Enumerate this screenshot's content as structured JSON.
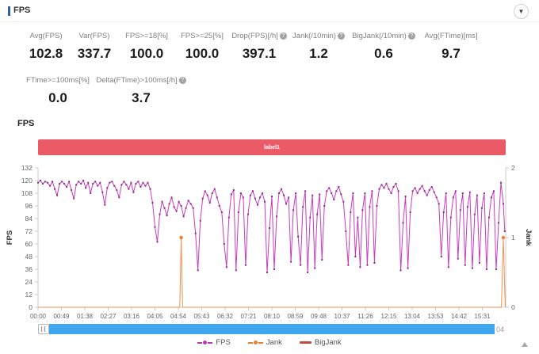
{
  "header": {
    "title": "FPS",
    "dropdown_icon": "▼"
  },
  "stats": {
    "row1": [
      {
        "label": "Avg(FPS)",
        "value": "102.8",
        "help": false
      },
      {
        "label": "Var(FPS)",
        "value": "337.7",
        "help": false
      },
      {
        "label": "FPS>=18[%]",
        "value": "100.0",
        "help": false
      },
      {
        "label": "FPS>=25[%]",
        "value": "100.0",
        "help": false
      },
      {
        "label": "Drop(FPS)[/h]",
        "value": "397.1",
        "help": true
      },
      {
        "label": "Jank(/10min)",
        "value": "1.2",
        "help": true
      },
      {
        "label": "BigJank(/10min)",
        "value": "0.6",
        "help": true
      },
      {
        "label": "Avg(FTime)[ms]",
        "value": "9.7",
        "help": false
      }
    ],
    "row2": [
      {
        "label": "FTime>=100ms[%]",
        "value": "0.0",
        "help": false
      },
      {
        "label": "Delta(FTime)>100ms[/h]",
        "value": "3.7",
        "help": true
      }
    ]
  },
  "chart_section": {
    "title": "FPS",
    "banner": {
      "text": "label1",
      "color": "#eb5a67"
    }
  },
  "chart_data": {
    "type": "line",
    "title": "FPS",
    "x_axis": {
      "tick_labels": [
        "00:00",
        "00:49",
        "01:38",
        "02:27",
        "03:16",
        "04:05",
        "04:54",
        "05:43",
        "06:32",
        "07:21",
        "08:10",
        "08:59",
        "09:48",
        "10:37",
        "11:26",
        "12:15",
        "13:04",
        "13:53",
        "14:42",
        "15:31"
      ],
      "tick_interval_seconds": 49,
      "range_seconds": [
        0,
        980
      ]
    },
    "y_left": {
      "label": "FPS",
      "ticks": [
        0,
        12,
        24,
        36,
        48,
        60,
        72,
        84,
        96,
        108,
        120,
        132
      ],
      "range": [
        0,
        132
      ]
    },
    "y_right": {
      "label": "Jank",
      "ticks": [
        0,
        1,
        2
      ],
      "range": [
        0,
        2
      ]
    },
    "grid": false,
    "legend_position": "bottom",
    "series": [
      {
        "name": "FPS",
        "axis": "left",
        "color": "#c83cbe",
        "marker_color": "#8e2d88",
        "points": [
          [
            0,
            118
          ],
          [
            5,
            120
          ],
          [
            10,
            117
          ],
          [
            15,
            119
          ],
          [
            20,
            118
          ],
          [
            25,
            115
          ],
          [
            30,
            119
          ],
          [
            35,
            112
          ],
          [
            40,
            106
          ],
          [
            45,
            117
          ],
          [
            50,
            119
          ],
          [
            55,
            117
          ],
          [
            60,
            114
          ],
          [
            65,
            119
          ],
          [
            70,
            111
          ],
          [
            75,
            103
          ],
          [
            80,
            116
          ],
          [
            85,
            119
          ],
          [
            90,
            117
          ],
          [
            95,
            120
          ],
          [
            100,
            113
          ],
          [
            105,
            118
          ],
          [
            110,
            108
          ],
          [
            115,
            117
          ],
          [
            120,
            119
          ],
          [
            125,
            115
          ],
          [
            130,
            118
          ],
          [
            135,
            109
          ],
          [
            140,
            97
          ],
          [
            145,
            113
          ],
          [
            150,
            118
          ],
          [
            155,
            119
          ],
          [
            160,
            115
          ],
          [
            165,
            111
          ],
          [
            170,
            104
          ],
          [
            175,
            116
          ],
          [
            180,
            119
          ],
          [
            185,
            116
          ],
          [
            190,
            112
          ],
          [
            195,
            118
          ],
          [
            200,
            109
          ],
          [
            205,
            117
          ],
          [
            210,
            119
          ],
          [
            215,
            114
          ],
          [
            220,
            118
          ],
          [
            225,
            115
          ],
          [
            230,
            118
          ],
          [
            235,
            112
          ],
          [
            240,
            99
          ],
          [
            245,
            76
          ],
          [
            250,
            62
          ],
          [
            255,
            88
          ],
          [
            260,
            100
          ],
          [
            265,
            94
          ],
          [
            270,
            87
          ],
          [
            275,
            98
          ],
          [
            280,
            104
          ],
          [
            285,
            95
          ],
          [
            290,
            91
          ],
          [
            295,
            100
          ],
          [
            300,
            96
          ],
          [
            305,
            86
          ],
          [
            310,
            94
          ],
          [
            315,
            101
          ],
          [
            320,
            98
          ],
          [
            325,
            94
          ],
          [
            330,
            70
          ],
          [
            335,
            35
          ],
          [
            340,
            82
          ],
          [
            345,
            103
          ],
          [
            350,
            110
          ],
          [
            355,
            106
          ],
          [
            360,
            99
          ],
          [
            365,
            108
          ],
          [
            370,
            112
          ],
          [
            375,
            104
          ],
          [
            380,
            96
          ],
          [
            385,
            90
          ],
          [
            390,
            60
          ],
          [
            395,
            38
          ],
          [
            400,
            85
          ],
          [
            405,
            107
          ],
          [
            410,
            111
          ],
          [
            415,
            35
          ],
          [
            420,
            90
          ],
          [
            425,
            108
          ],
          [
            430,
            104
          ],
          [
            435,
            40
          ],
          [
            440,
            88
          ],
          [
            445,
            106
          ],
          [
            450,
            110
          ],
          [
            455,
            103
          ],
          [
            460,
            97
          ],
          [
            465,
            104
          ],
          [
            470,
            108
          ],
          [
            475,
            100
          ],
          [
            480,
            33
          ],
          [
            485,
            75
          ],
          [
            490,
            105
          ],
          [
            495,
            36
          ],
          [
            500,
            86
          ],
          [
            505,
            108
          ],
          [
            510,
            112
          ],
          [
            515,
            106
          ],
          [
            520,
            98
          ],
          [
            525,
            104
          ],
          [
            530,
            43
          ],
          [
            535,
            92
          ],
          [
            540,
            108
          ],
          [
            545,
            67
          ],
          [
            550,
            40
          ],
          [
            555,
            95
          ],
          [
            560,
            110
          ],
          [
            565,
            33
          ],
          [
            570,
            85
          ],
          [
            575,
            106
          ],
          [
            580,
            37
          ],
          [
            585,
            88
          ],
          [
            590,
            107
          ],
          [
            595,
            45
          ],
          [
            600,
            96
          ],
          [
            605,
            110
          ],
          [
            610,
            113
          ],
          [
            615,
            108
          ],
          [
            620,
            102
          ],
          [
            625,
            110
          ],
          [
            630,
            114
          ],
          [
            635,
            107
          ],
          [
            640,
            100
          ],
          [
            645,
            72
          ],
          [
            650,
            40
          ],
          [
            655,
            90
          ],
          [
            660,
            108
          ],
          [
            665,
            48
          ],
          [
            670,
            85
          ],
          [
            675,
            38
          ],
          [
            680,
            92
          ],
          [
            685,
            108
          ],
          [
            690,
            40
          ],
          [
            695,
            95
          ],
          [
            700,
            110
          ],
          [
            705,
            42
          ],
          [
            710,
            96
          ],
          [
            715,
            112
          ],
          [
            720,
            116
          ],
          [
            725,
            113
          ],
          [
            730,
            117
          ],
          [
            735,
            112
          ],
          [
            740,
            108
          ],
          [
            745,
            114
          ],
          [
            750,
            117
          ],
          [
            755,
            110
          ],
          [
            760,
            35
          ],
          [
            765,
            80
          ],
          [
            770,
            105
          ],
          [
            775,
            37
          ],
          [
            780,
            90
          ],
          [
            785,
            110
          ],
          [
            790,
            113
          ],
          [
            795,
            108
          ],
          [
            800,
            112
          ],
          [
            805,
            115
          ],
          [
            810,
            110
          ],
          [
            815,
            106
          ],
          [
            820,
            111
          ],
          [
            825,
            114
          ],
          [
            830,
            109
          ],
          [
            835,
            104
          ],
          [
            840,
            98
          ],
          [
            845,
            48
          ],
          [
            850,
            90
          ],
          [
            855,
            108
          ],
          [
            860,
            38
          ],
          [
            865,
            85
          ],
          [
            870,
            104
          ],
          [
            875,
            110
          ],
          [
            880,
            46
          ],
          [
            885,
            92
          ],
          [
            890,
            108
          ],
          [
            895,
            40
          ],
          [
            900,
            95
          ],
          [
            905,
            109
          ],
          [
            910,
            37
          ],
          [
            915,
            88
          ],
          [
            920,
            106
          ],
          [
            925,
            42
          ],
          [
            930,
            94
          ],
          [
            935,
            108
          ],
          [
            940,
            36
          ],
          [
            945,
            85
          ],
          [
            950,
            104
          ],
          [
            955,
            110
          ],
          [
            960,
            36
          ],
          [
            965,
            80
          ],
          [
            970,
            118
          ],
          [
            975,
            98
          ],
          [
            978,
            72
          ]
        ]
      },
      {
        "name": "Jank",
        "axis": "right",
        "color": "#f0914c",
        "marker_color": "#ed7d31",
        "points": [
          [
            0,
            0
          ],
          [
            297,
            0
          ],
          [
            300,
            1
          ],
          [
            303,
            0
          ],
          [
            971,
            0
          ],
          [
            975,
            1
          ],
          [
            979,
            0
          ]
        ]
      },
      {
        "name": "BigJank",
        "axis": "right",
        "color": "#bf4d45",
        "marker_color": "#bf4d45",
        "points": []
      }
    ]
  },
  "scrollbar": {
    "end_label": "04",
    "color": "#3fa7ef"
  },
  "legend": [
    {
      "name": "FPS",
      "color": "#bb3ab1"
    },
    {
      "name": "Jank",
      "color": "#ed7d31"
    },
    {
      "name": "BigJank",
      "color": "#bf4d45"
    }
  ]
}
